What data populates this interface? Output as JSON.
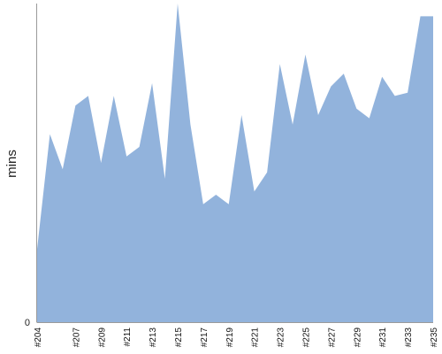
{
  "chart_data": {
    "type": "area",
    "title": "",
    "xlabel": "",
    "ylabel": "mins",
    "ylim": [
      0,
      100
    ],
    "y_tick_labels": [
      "0"
    ],
    "grid": false,
    "legend": "none",
    "colors": {
      "fill": "#92b3dc",
      "axis": "#9a9a9a"
    },
    "x": [
      "#204",
      "#205",
      "#206",
      "#207",
      "#208",
      "#209",
      "#210",
      "#211",
      "#212",
      "#213",
      "#214",
      "#215",
      "#216",
      "#217",
      "#218",
      "#219",
      "#220",
      "#221",
      "#222",
      "#223",
      "#224",
      "#225",
      "#226",
      "#227",
      "#228",
      "#229",
      "#230",
      "#231",
      "#232",
      "#233",
      "#234",
      "#235"
    ],
    "x_tick_labels": [
      "#204",
      "#207",
      "#209",
      "#211",
      "#213",
      "#215",
      "#217",
      "#219",
      "#221",
      "#223",
      "#225",
      "#227",
      "#229",
      "#231",
      "#233",
      "#235"
    ],
    "series": [
      {
        "values": [
          23,
          59,
          48,
          68,
          71,
          50,
          71,
          52,
          55,
          75,
          45,
          100,
          62,
          37,
          40,
          37,
          65,
          41,
          47,
          81,
          62,
          84,
          65,
          74,
          78,
          67,
          64,
          77,
          71,
          72,
          96,
          96
        ]
      }
    ]
  }
}
